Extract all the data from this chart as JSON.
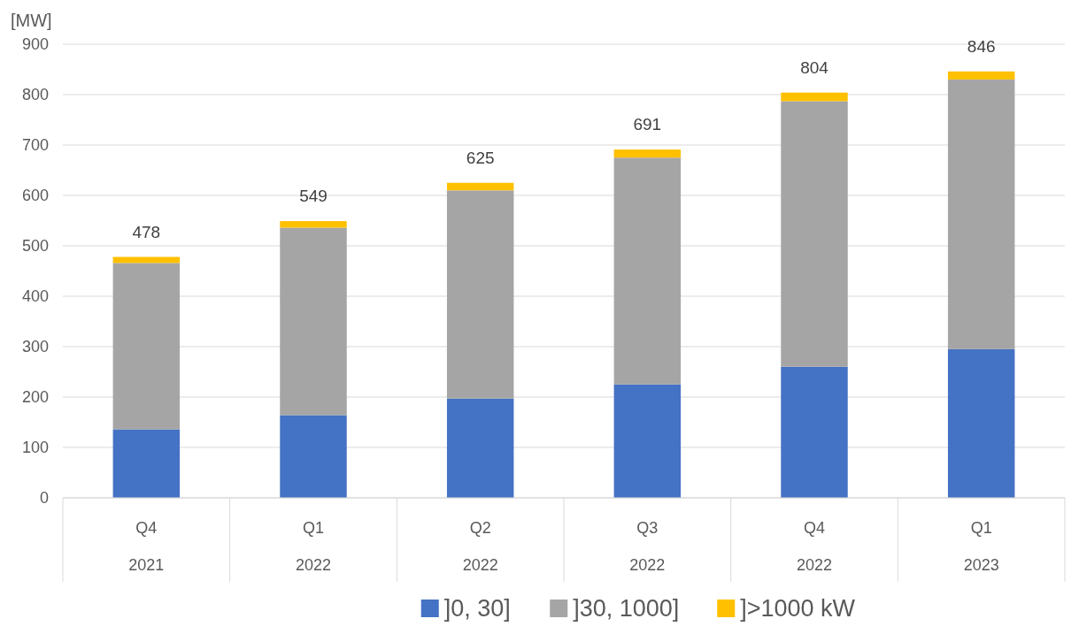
{
  "chart_data": {
    "type": "bar",
    "stacked": true,
    "ylabel": "[MW]",
    "categories": [
      "Q4\n2021",
      "Q1\n2022",
      "Q2\n2022",
      "Q3\n2022",
      "Q4\n2022",
      "Q1\n2023"
    ],
    "series": [
      {
        "name": "]0, 30]",
        "color": "#4472c4",
        "values": [
          136,
          164,
          197,
          225,
          260,
          295
        ]
      },
      {
        "name": "]30, 1000]",
        "color": "#a5a5a5",
        "values": [
          330,
          372,
          413,
          450,
          527,
          535
        ]
      },
      {
        "name": "]>1000  kW",
        "color": "#ffc000",
        "values": [
          12,
          13,
          15,
          16,
          17,
          16
        ]
      }
    ],
    "totals": [
      "478",
      "549",
      "625",
      "691",
      "804",
      "846"
    ],
    "ylim": [
      0,
      900
    ],
    "yticks": [
      0,
      100,
      200,
      300,
      400,
      500,
      600,
      700,
      800,
      900
    ],
    "grid": "y",
    "legend": "bottom"
  }
}
